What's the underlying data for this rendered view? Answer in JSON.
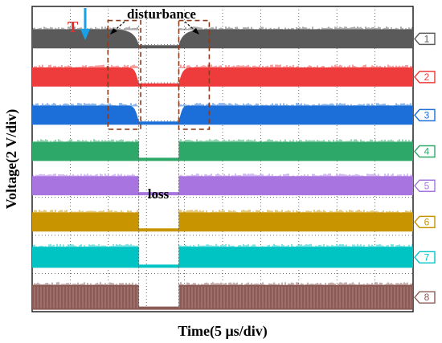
{
  "chart_data": {
    "type": "line",
    "title": "",
    "xlabel": "Time(5 μs/div)",
    "ylabel": "Voltage(2 V/div)",
    "x_divisions": 10,
    "y_divisions": 8,
    "grid": true,
    "trigger_marker": "T",
    "annotations": [
      {
        "text": "disturbance",
        "near_division": 3.5
      },
      {
        "text": "loss",
        "near_division": 3.5
      }
    ],
    "series": [
      {
        "name": "1",
        "color": "#5a5a5a",
        "level_start_div": 0.6,
        "level_end_div": 1.1,
        "disturbance_start": 2.1,
        "loss_start": 2.8,
        "loss_end": 3.85,
        "recovery_end": 4.6
      },
      {
        "name": "2",
        "color": "#ee3b3b",
        "level_start_div": 1.6,
        "level_end_div": 2.1,
        "disturbance_start": 2.5,
        "loss_start": 2.8,
        "loss_end": 3.85,
        "recovery_end": 4.2
      },
      {
        "name": "3",
        "color": "#1c6fd8",
        "level_start_div": 2.6,
        "level_end_div": 3.1,
        "disturbance_start": 2.5,
        "loss_start": 2.8,
        "loss_end": 3.85,
        "recovery_end": 4.1
      },
      {
        "name": "4",
        "color": "#2ea868",
        "level_start_div": 3.55,
        "level_end_div": 4.05,
        "disturbance_start": 2.8,
        "loss_start": 2.8,
        "loss_end": 3.85,
        "recovery_end": 3.85
      },
      {
        "name": "5",
        "color": "#a774e0",
        "level_start_div": 4.45,
        "level_end_div": 4.95,
        "disturbance_start": 2.8,
        "loss_start": 2.8,
        "loss_end": 3.85,
        "recovery_end": 3.85
      },
      {
        "name": "6",
        "color": "#c89500",
        "level_start_div": 5.4,
        "level_end_div": 5.9,
        "disturbance_start": 2.8,
        "loss_start": 2.8,
        "loss_end": 3.85,
        "recovery_end": 3.85
      },
      {
        "name": "7",
        "color": "#00c4c4",
        "level_start_div": 6.3,
        "level_end_div": 6.85,
        "disturbance_start": 2.8,
        "loss_start": 2.8,
        "loss_end": 3.85,
        "recovery_end": 3.85
      },
      {
        "name": "8",
        "color": "#8b5a55",
        "level_start_div": 7.3,
        "level_end_div": 7.95,
        "disturbance_start": 2.8,
        "loss_start": 2.8,
        "loss_end": 3.85,
        "recovery_end": 3.85
      }
    ]
  }
}
